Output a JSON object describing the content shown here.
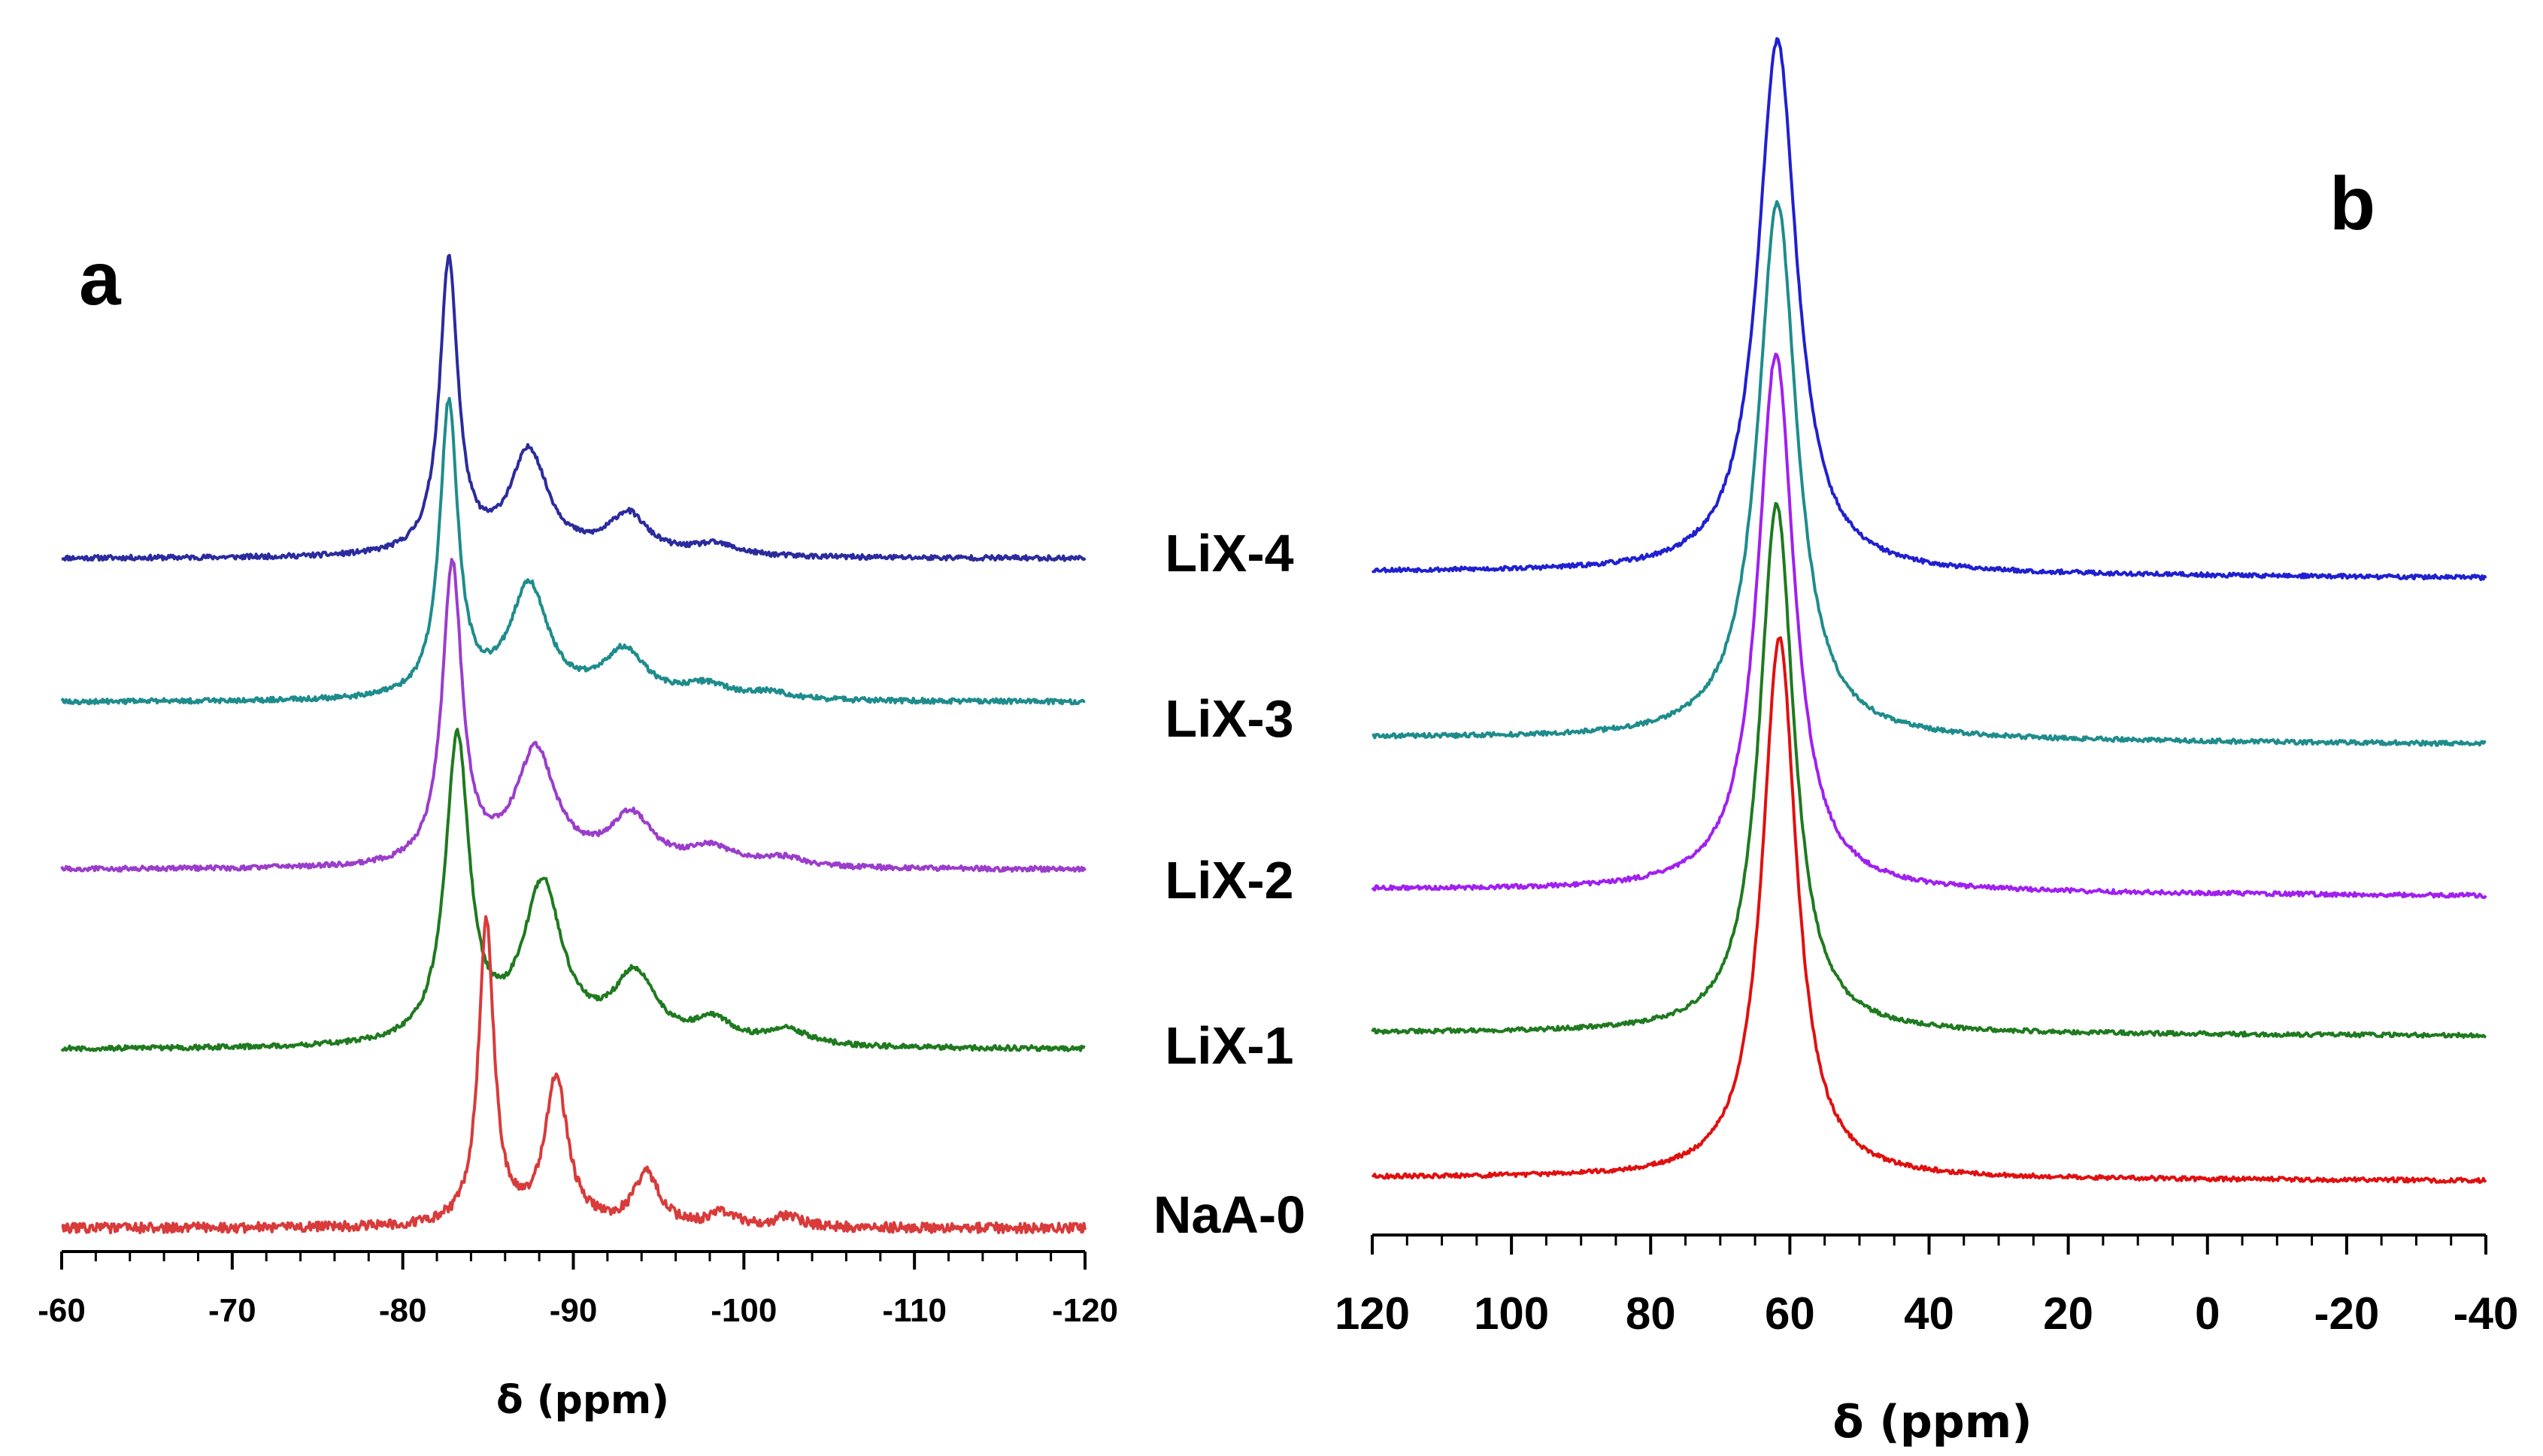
{
  "chart_data": [
    {
      "type": "line",
      "panel": "a",
      "xlabel": "δ (ppm)",
      "ylabel": "",
      "xlim": [
        -60,
        -120
      ],
      "ticks": [
        -60,
        -70,
        -80,
        -90,
        -100,
        -110,
        -120
      ],
      "minor_step": 2,
      "tick_labels": [
        "-60",
        "-70",
        "-80",
        "-90",
        "-100",
        "-110",
        "-120"
      ],
      "grid": false,
      "series": [
        {
          "name": "LiX-4",
          "color": "#2b2b9e",
          "offset": 0.0,
          "noise": 0.011,
          "drift": 0.0,
          "peaks": [
            {
              "c": -82.7,
              "h": 1.3,
              "w": 0.65
            },
            {
              "c": -87.4,
              "h": 0.46,
              "w": 1.35
            },
            {
              "c": -93.2,
              "h": 0.18,
              "w": 1.4
            },
            {
              "c": -98.3,
              "h": 0.05,
              "w": 1.6
            }
          ]
        },
        {
          "name": "LiX-3",
          "color": "#1e8c8c",
          "offset": 0.0,
          "noise": 0.011,
          "drift": 0.0,
          "peaks": [
            {
              "c": -82.7,
              "h": 1.3,
              "w": 0.65
            },
            {
              "c": -87.4,
              "h": 0.5,
              "w": 1.35
            },
            {
              "c": -93.0,
              "h": 0.21,
              "w": 1.5
            },
            {
              "c": -97.8,
              "h": 0.06,
              "w": 1.6
            },
            {
              "c": -101.5,
              "h": 0.03,
              "w": 1.6
            }
          ]
        },
        {
          "name": "LiX-2",
          "color": "#9b3dcc",
          "offset": 0.0,
          "noise": 0.011,
          "drift": 0.0,
          "peaks": [
            {
              "c": -82.9,
              "h": 1.33,
              "w": 0.7
            },
            {
              "c": -87.8,
              "h": 0.51,
              "w": 1.4
            },
            {
              "c": -93.4,
              "h": 0.22,
              "w": 1.5
            },
            {
              "c": -98.1,
              "h": 0.08,
              "w": 1.6
            },
            {
              "c": -102.3,
              "h": 0.04,
              "w": 1.6
            }
          ]
        },
        {
          "name": "LiX-1",
          "color": "#1f7a1f",
          "offset": 0.0,
          "noise": 0.011,
          "drift": 0.0,
          "peaks": [
            {
              "c": -83.2,
              "h": 1.35,
              "w": 0.85
            },
            {
              "c": -88.2,
              "h": 0.7,
              "w": 1.4
            },
            {
              "c": -93.6,
              "h": 0.3,
              "w": 1.5
            },
            {
              "c": -98.2,
              "h": 0.1,
              "w": 1.4
            },
            {
              "c": -102.5,
              "h": 0.07,
              "w": 1.6
            }
          ]
        },
        {
          "name": "NaA-0",
          "color": "#d93a3a",
          "offset": 0.0,
          "noise": 0.022,
          "drift": 0.0,
          "peaks": [
            {
              "c": -84.9,
              "h": 1.35,
              "w": 0.55
            },
            {
              "c": -89.0,
              "h": 0.65,
              "w": 0.8
            },
            {
              "c": -94.3,
              "h": 0.23,
              "w": 0.9
            },
            {
              "c": -98.8,
              "h": 0.06,
              "w": 0.9
            },
            {
              "c": -102.6,
              "h": 0.05,
              "w": 0.9
            }
          ]
        }
      ]
    },
    {
      "type": "line",
      "panel": "b",
      "xlabel": "δ (ppm)",
      "ylabel": "",
      "xlim": [
        120,
        -40
      ],
      "ticks": [
        120,
        100,
        80,
        60,
        40,
        20,
        0,
        -20,
        -40
      ],
      "minor_step": 5,
      "tick_labels": [
        "120",
        "100",
        "80",
        "60",
        "40",
        "20",
        "0",
        "-20",
        "-40"
      ],
      "grid": false,
      "series": [
        {
          "name": "LiX-4",
          "color": "#2020d0",
          "noise": 0.004,
          "drift": 0.012,
          "peaks": [
            {
              "c": 61.8,
              "h": 1.0,
              "w": 3.4
            }
          ]
        },
        {
          "name": "LiX-3",
          "color": "#1e8c8c",
          "noise": 0.004,
          "drift": 0.012,
          "peaks": [
            {
              "c": 61.8,
              "h": 1.0,
              "w": 3.4
            }
          ]
        },
        {
          "name": "LiX-2",
          "color": "#a020f0",
          "noise": 0.004,
          "drift": 0.012,
          "peaks": [
            {
              "c": 62.0,
              "h": 1.0,
              "w": 3.2
            }
          ]
        },
        {
          "name": "LiX-1",
          "color": "#1f7a1f",
          "noise": 0.004,
          "drift": 0.006,
          "peaks": [
            {
              "c": 61.9,
              "h": 1.0,
              "w": 3.0
            }
          ]
        },
        {
          "name": "NaA-0",
          "color": "#e01010",
          "noise": 0.004,
          "drift": 0.006,
          "peaks": [
            {
              "c": 61.5,
              "h": 1.0,
              "w": 3.0
            }
          ]
        }
      ]
    }
  ],
  "panels": {
    "a": {
      "label": "a"
    },
    "b": {
      "label": "b"
    }
  },
  "series_labels": [
    "LiX-4",
    "LiX-3",
    "LiX-2",
    "LiX-1",
    "NaA-0"
  ]
}
